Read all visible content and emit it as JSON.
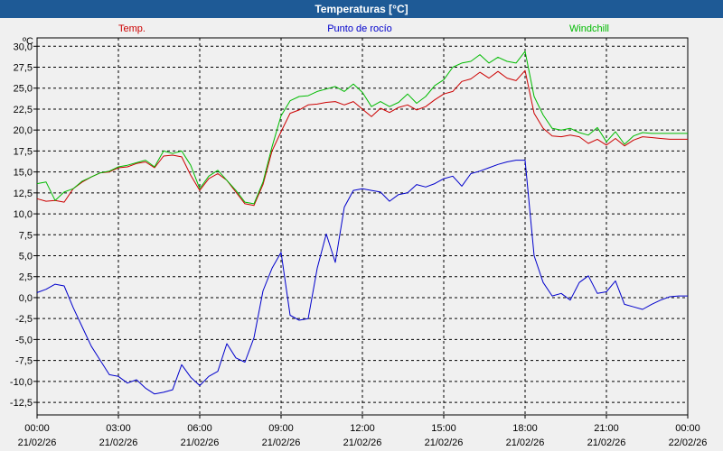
{
  "window": {
    "title": "Temperaturas [°C]"
  },
  "colors": {
    "background": "#f0f0f0",
    "titlebar": "#1e5a96",
    "temp": "#cc0000",
    "dewpoint": "#0000cc",
    "windchill": "#00bb00"
  },
  "chart_data": {
    "type": "line",
    "title": "Temperaturas [°C]",
    "unit": "ºC",
    "grid": true,
    "grid_style": "dashed",
    "ylim": [
      -14,
      31
    ],
    "xlim": [
      "21/02/26 00:00",
      "22/02/26 00:00"
    ],
    "y_ticks": [
      {
        "value": 30,
        "label": "30,0"
      },
      {
        "value": 27.5,
        "label": "27,5"
      },
      {
        "value": 25,
        "label": "25,0"
      },
      {
        "value": 22.5,
        "label": "22,5"
      },
      {
        "value": 20,
        "label": "20,0"
      },
      {
        "value": 17.5,
        "label": "17,5"
      },
      {
        "value": 15,
        "label": "15,0"
      },
      {
        "value": 12.5,
        "label": "12,5"
      },
      {
        "value": 10,
        "label": "10,0"
      },
      {
        "value": 7.5,
        "label": "7,5"
      },
      {
        "value": 5,
        "label": "5,0"
      },
      {
        "value": 2.5,
        "label": "2,5"
      },
      {
        "value": 0,
        "label": "0,0"
      },
      {
        "value": -2.5,
        "label": "-2,5"
      },
      {
        "value": -5,
        "label": "-5,0"
      },
      {
        "value": -7.5,
        "label": "-7,5"
      },
      {
        "value": -10,
        "label": "-10,0"
      },
      {
        "value": -12.5,
        "label": "-12,5"
      }
    ],
    "x_ticks": [
      {
        "time": "00:00",
        "date": "21/02/26"
      },
      {
        "time": "03:00",
        "date": "21/02/26"
      },
      {
        "time": "06:00",
        "date": "21/02/26"
      },
      {
        "time": "09:00",
        "date": "21/02/26"
      },
      {
        "time": "12:00",
        "date": "21/02/26"
      },
      {
        "time": "15:00",
        "date": "21/02/26"
      },
      {
        "time": "18:00",
        "date": "21/02/26"
      },
      {
        "time": "21:00",
        "date": "21/02/26"
      },
      {
        "time": "00:00",
        "date": "22/02/26"
      }
    ],
    "legend": [
      "Temp.",
      "Punto de rocío",
      "Windchill"
    ],
    "series": [
      {
        "name": "Temp.",
        "color": "#cc0000",
        "x": [
          "00:00",
          "00:20",
          "00:40",
          "01:00",
          "01:20",
          "01:40",
          "02:00",
          "02:20",
          "02:40",
          "03:00",
          "03:20",
          "03:40",
          "04:00",
          "04:20",
          "04:40",
          "05:00",
          "05:20",
          "05:40",
          "06:00",
          "06:20",
          "06:40",
          "07:00",
          "07:20",
          "07:40",
          "08:00",
          "08:20",
          "08:40",
          "09:00",
          "09:20",
          "09:40",
          "10:00",
          "10:20",
          "10:40",
          "11:00",
          "11:20",
          "11:40",
          "12:00",
          "12:20",
          "12:40",
          "13:00",
          "13:20",
          "13:40",
          "14:00",
          "14:20",
          "14:40",
          "15:00",
          "15:20",
          "15:40",
          "16:00",
          "16:20",
          "16:40",
          "17:00",
          "17:20",
          "17:40",
          "18:00",
          "18:20",
          "18:40",
          "19:00",
          "19:20",
          "19:40",
          "20:00",
          "20:20",
          "20:40",
          "21:00",
          "21:20",
          "21:40",
          "22:00",
          "22:20",
          "22:40",
          "23:00",
          "23:20",
          "23:40",
          "24:00"
        ],
        "values": [
          11.8,
          11.5,
          11.6,
          11.4,
          13,
          13.8,
          14.4,
          14.9,
          15,
          15.5,
          15.6,
          16,
          16.2,
          15.5,
          16.9,
          17,
          16.8,
          14.6,
          12.8,
          14.2,
          14.8,
          14,
          12.6,
          11.2,
          11,
          13.5,
          17.5,
          19.8,
          22,
          22.4,
          23,
          23.1,
          23.3,
          23.4,
          23,
          23.4,
          22.5,
          21.6,
          22.6,
          22.1,
          22.7,
          23,
          22.4,
          22.8,
          23.6,
          24.3,
          24.6,
          25.8,
          26.1,
          26.9,
          26.2,
          27,
          26.2,
          25.9,
          27.1,
          22,
          20.2,
          19.3,
          19.2,
          19.4,
          19.2,
          18.4,
          18.9,
          18.2,
          19,
          18.1,
          18.8,
          19.2,
          19.1,
          19,
          18.9,
          18.9,
          18.9
        ]
      },
      {
        "name": "Punto de rocío",
        "color": "#0000cc",
        "x": [
          "00:00",
          "00:20",
          "00:40",
          "01:00",
          "01:20",
          "01:40",
          "02:00",
          "02:20",
          "02:40",
          "03:00",
          "03:20",
          "03:40",
          "04:00",
          "04:20",
          "04:40",
          "05:00",
          "05:20",
          "05:40",
          "06:00",
          "06:20",
          "06:40",
          "07:00",
          "07:20",
          "07:40",
          "08:00",
          "08:20",
          "08:40",
          "09:00",
          "09:20",
          "09:40",
          "10:00",
          "10:20",
          "10:40",
          "11:00",
          "11:20",
          "11:40",
          "12:00",
          "12:20",
          "12:40",
          "13:00",
          "13:20",
          "13:40",
          "14:00",
          "14:20",
          "14:40",
          "15:00",
          "15:20",
          "15:40",
          "16:00",
          "16:20",
          "16:40",
          "17:00",
          "17:20",
          "17:40",
          "18:00",
          "18:20",
          "18:40",
          "19:00",
          "19:20",
          "19:40",
          "20:00",
          "20:20",
          "20:40",
          "21:00",
          "21:20",
          "21:40",
          "22:00",
          "22:20",
          "22:40",
          "23:00",
          "23:20",
          "23:40",
          "24:00"
        ],
        "values": [
          0.6,
          1,
          1.6,
          1.4,
          -1.2,
          -3.5,
          -5.8,
          -7.5,
          -9.2,
          -9.4,
          -10.2,
          -9.8,
          -10.8,
          -11.5,
          -11.3,
          -11,
          -8,
          -9.5,
          -10.5,
          -9.4,
          -8.8,
          -5.5,
          -7.2,
          -7.7,
          -4.8,
          0.8,
          3.5,
          5.4,
          -2.1,
          -2.7,
          -2.5,
          3.5,
          7.6,
          4.2,
          10.8,
          12.8,
          13,
          12.8,
          12.6,
          11.5,
          12.3,
          12.5,
          13.5,
          13.2,
          13.6,
          14.2,
          14.5,
          13.3,
          14.8,
          15.1,
          15.5,
          15.9,
          16.2,
          16.4,
          16.4,
          5,
          1.8,
          0.2,
          0.5,
          -0.3,
          1.8,
          2.6,
          0.5,
          0.7,
          2,
          -0.8,
          -1.1,
          -1.4,
          -0.8,
          -0.3,
          0.1,
          0.2,
          0.2
        ]
      },
      {
        "name": "Windchill",
        "color": "#00bb00",
        "x": [
          "00:00",
          "00:20",
          "00:40",
          "01:00",
          "01:20",
          "01:40",
          "02:00",
          "02:20",
          "02:40",
          "03:00",
          "03:20",
          "03:40",
          "04:00",
          "04:20",
          "04:40",
          "05:00",
          "05:20",
          "05:40",
          "06:00",
          "06:20",
          "06:40",
          "07:00",
          "07:20",
          "07:40",
          "08:00",
          "08:20",
          "08:40",
          "09:00",
          "09:20",
          "09:40",
          "10:00",
          "10:20",
          "10:40",
          "11:00",
          "11:20",
          "11:40",
          "12:00",
          "12:20",
          "12:40",
          "13:00",
          "13:20",
          "13:40",
          "14:00",
          "14:20",
          "14:40",
          "15:00",
          "15:20",
          "15:40",
          "16:00",
          "16:20",
          "16:40",
          "17:00",
          "17:20",
          "17:40",
          "18:00",
          "18:20",
          "18:40",
          "19:00",
          "19:20",
          "19:40",
          "20:00",
          "20:20",
          "20:40",
          "21:00",
          "21:20",
          "21:40",
          "22:00",
          "22:20",
          "22:40",
          "23:00",
          "23:20",
          "23:40",
          "24:00"
        ],
        "values": [
          13.6,
          13.8,
          11.6,
          12.6,
          13,
          13.9,
          14.4,
          14.9,
          15.1,
          15.6,
          15.8,
          16.1,
          16.4,
          15.6,
          17.5,
          17.2,
          17.5,
          15.8,
          13,
          14.5,
          15.2,
          14,
          12.8,
          11.4,
          11.2,
          13.8,
          18,
          21.7,
          23.5,
          24,
          24.1,
          24.6,
          24.9,
          25.2,
          24.6,
          25.5,
          24.5,
          22.8,
          23.4,
          22.8,
          23.3,
          24.3,
          23.2,
          24,
          25.3,
          26,
          27.5,
          28,
          28.2,
          29,
          28,
          28.7,
          28.2,
          28,
          29.4,
          24,
          21.8,
          20.2,
          20,
          20.2,
          19.7,
          19.4,
          20.3,
          18.6,
          19.8,
          18.3,
          19.3,
          19.7,
          19.6,
          19.6,
          19.6,
          19.6,
          19.6
        ]
      }
    ]
  }
}
